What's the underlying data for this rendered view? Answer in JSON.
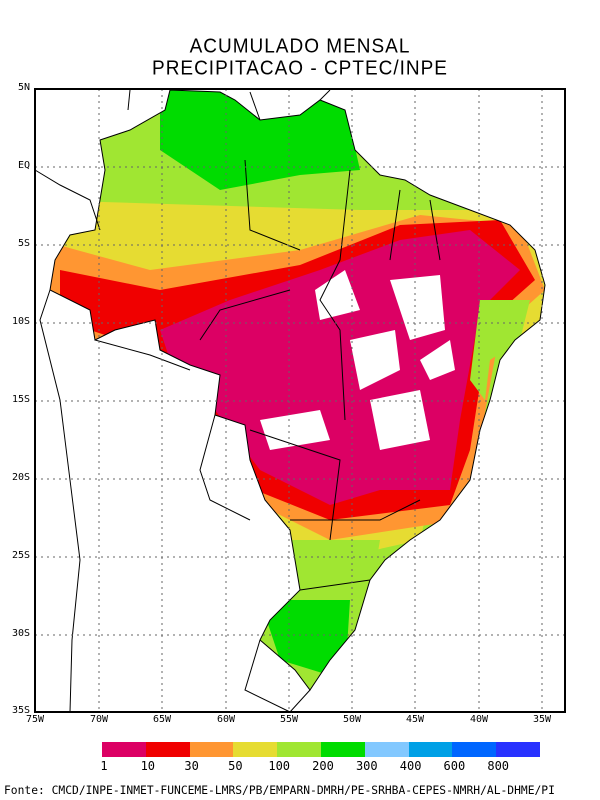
{
  "title": {
    "line1": "ACUMULADO MENSAL",
    "line2": "PRECIPITACAO - CPTEC/INPE"
  },
  "lat_labels": [
    "5N",
    "EQ",
    "5S",
    "10S",
    "15S",
    "20S",
    "25S",
    "30S",
    "35S"
  ],
  "lon_labels": [
    "75W",
    "70W",
    "65W",
    "60W",
    "55W",
    "50W",
    "45W",
    "40W",
    "35W"
  ],
  "legend": {
    "labels": [
      "1",
      "10",
      "30",
      "50",
      "100",
      "200",
      "300",
      "400",
      "600",
      "800"
    ],
    "colors": [
      "#dc0064",
      "#f00000",
      "#ff9632",
      "#e6dc32",
      "#a0e632",
      "#00dc00",
      "#82c8ff",
      "#00a0e6",
      "#0066ff",
      "#2832ff"
    ]
  },
  "footer": "Fonte: CMCD/INPE-INMET-FUNCEME-LMRS/PB/EMPARN-DMRH/PE-SRHBA-CEPES-NMRH/AL-DHME/PI"
}
